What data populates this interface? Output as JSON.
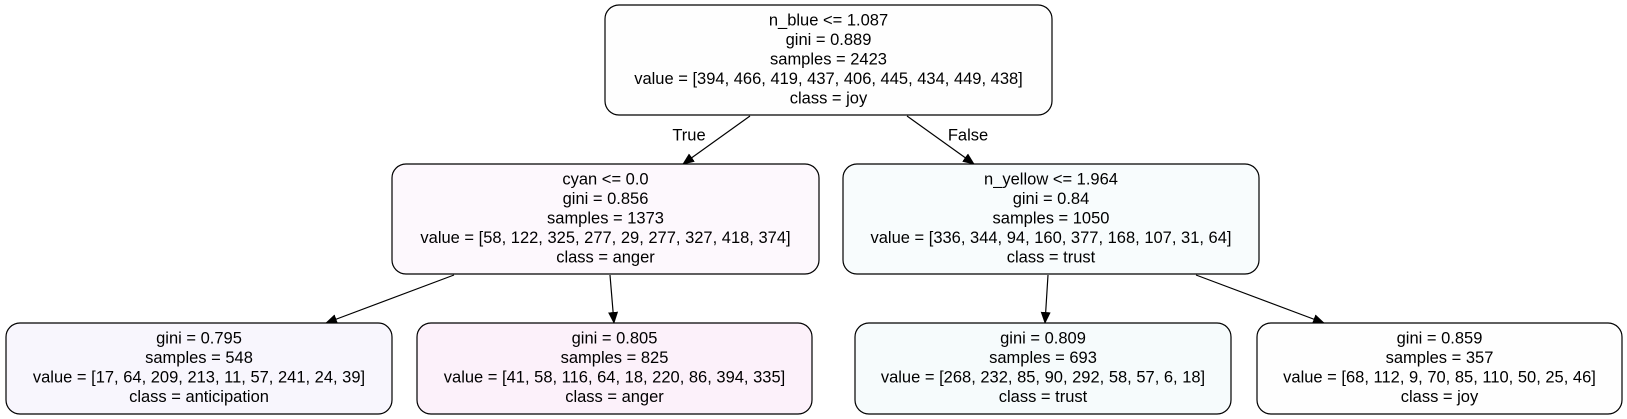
{
  "tree": {
    "nodes": [
      {
        "id": "root",
        "color": "#fefefe",
        "lines": [
          "n_blue <= 1.087",
          "gini = 0.889",
          "samples = 2423",
          "value = [394, 466, 419, 437, 406, 445, 434, 449, 438]",
          "class = joy"
        ]
      },
      {
        "id": "node-1",
        "color": "#fdf8fd",
        "lines": [
          "cyan <= 0.0",
          "gini = 0.856",
          "samples = 1373",
          "value = [58, 122, 325, 277, 29, 277, 327, 418, 374]",
          "class = anger"
        ]
      },
      {
        "id": "node-2",
        "color": "#f8fcfd",
        "lines": [
          "n_yellow <= 1.964",
          "gini = 0.84",
          "samples = 1050",
          "value = [336, 344, 94, 160, 377, 168, 107, 31, 64]",
          "class = trust"
        ]
      },
      {
        "id": "node-3",
        "color": "#f8f6fd",
        "lines": [
          "gini = 0.795",
          "samples = 548",
          "value = [17, 64, 209, 213, 11, 57, 241, 24, 39]",
          "class = anticipation"
        ]
      },
      {
        "id": "node-4",
        "color": "#fcf1fa",
        "lines": [
          "gini = 0.805",
          "samples = 825",
          "value = [41, 58, 116, 64, 18, 220, 86, 394, 335]",
          "class = anger"
        ]
      },
      {
        "id": "node-5",
        "color": "#f6fbfc",
        "lines": [
          "gini = 0.809",
          "samples = 693",
          "value = [268, 232, 85, 90, 292, 58, 57, 6, 18]",
          "class = trust"
        ]
      },
      {
        "id": "node-6",
        "color": "#fefefe",
        "lines": [
          "gini = 0.859",
          "samples = 357",
          "value = [68, 112, 9, 70, 85, 110, 50, 25, 46]",
          "class = joy"
        ]
      }
    ],
    "edges": [
      {
        "from": "root",
        "to": "node-1",
        "label": "True"
      },
      {
        "from": "root",
        "to": "node-2",
        "label": "False"
      },
      {
        "from": "node-1",
        "to": "node-3",
        "label": ""
      },
      {
        "from": "node-1",
        "to": "node-4",
        "label": ""
      },
      {
        "from": "node-2",
        "to": "node-5",
        "label": ""
      },
      {
        "from": "node-2",
        "to": "node-6",
        "label": ""
      }
    ]
  }
}
